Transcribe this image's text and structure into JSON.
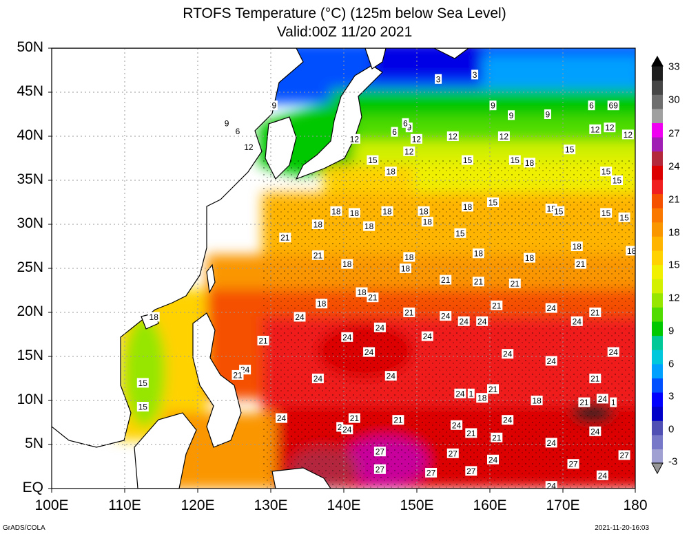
{
  "title": {
    "line1": "RTOFS Temperature (°C) (125m below Sea Level)",
    "line2": "Valid:00Z 11/20 2021"
  },
  "axes": {
    "lat_labels": [
      "50N",
      "45N",
      "40N",
      "35N",
      "30N",
      "25N",
      "20N",
      "15N",
      "10N",
      "5N",
      "EQ"
    ],
    "lon_labels": [
      "100E",
      "110E",
      "120E",
      "130E",
      "140E",
      "150E",
      "160E",
      "170E",
      "180"
    ]
  },
  "colorbar": {
    "labels": [
      "33",
      "30",
      "27",
      "24",
      "21",
      "18",
      "15",
      "12",
      "9",
      "6",
      "3",
      "0",
      "-3"
    ],
    "colors": [
      "#1e1e1e",
      "#464646",
      "#6e6e6e",
      "#a0a0a0",
      "#f000f0",
      "#a01eb4",
      "#b4283c",
      "#dc0000",
      "#f01e1e",
      "#f55000",
      "#fa7800",
      "#fa9600",
      "#ffb400",
      "#ffd200",
      "#f0f000",
      "#d2f000",
      "#96e600",
      "#50dc00",
      "#00c800",
      "#00c896",
      "#00c8dc",
      "#00a0ff",
      "#0050ff",
      "#0000ff",
      "#0000c8",
      "#5050b4",
      "#7878c8",
      "#a0a0d2"
    ],
    "top_arrow_color": "#000000",
    "bottom_arrow_color": "#969696"
  },
  "contour_labels": [
    {
      "t": "3",
      "lon": 153,
      "lat": 46.5
    },
    {
      "t": "3",
      "lon": 158,
      "lat": 47
    },
    {
      "t": "9",
      "lon": 130.5,
      "lat": 43.5
    },
    {
      "t": "9",
      "lon": 124,
      "lat": 41.5
    },
    {
      "t": "6",
      "lon": 125.5,
      "lat": 40.6
    },
    {
      "t": "12",
      "lon": 127,
      "lat": 38.8
    },
    {
      "t": "12",
      "lon": 141.5,
      "lat": 39.7
    },
    {
      "t": "6",
      "lon": 147,
      "lat": 40.5
    },
    {
      "t": "9",
      "lon": 149,
      "lat": 41
    },
    {
      "t": "6",
      "lon": 148.5,
      "lat": 41.5
    },
    {
      "t": "12",
      "lon": 150,
      "lat": 39.7
    },
    {
      "t": "12",
      "lon": 149,
      "lat": 38.3
    },
    {
      "t": "12",
      "lon": 155,
      "lat": 40
    },
    {
      "t": "12",
      "lon": 162,
      "lat": 40
    },
    {
      "t": "9",
      "lon": 160.5,
      "lat": 43.5
    },
    {
      "t": "9",
      "lon": 163,
      "lat": 42.4
    },
    {
      "t": "9",
      "lon": 168,
      "lat": 42.5
    },
    {
      "t": "6",
      "lon": 174,
      "lat": 43.5
    },
    {
      "t": "69",
      "lon": 177,
      "lat": 43.5
    },
    {
      "t": "12",
      "lon": 176.5,
      "lat": 41
    },
    {
      "t": "12",
      "lon": 174.5,
      "lat": 40.8
    },
    {
      "t": "12",
      "lon": 179,
      "lat": 40.2
    },
    {
      "t": "15",
      "lon": 144,
      "lat": 37.3
    },
    {
      "t": "18",
      "lon": 146.5,
      "lat": 36
    },
    {
      "t": "15",
      "lon": 157,
      "lat": 37.3
    },
    {
      "t": "15",
      "lon": 163.5,
      "lat": 37.3
    },
    {
      "t": "18",
      "lon": 165.5,
      "lat": 37
    },
    {
      "t": "15",
      "lon": 171,
      "lat": 38.5
    },
    {
      "t": "15",
      "lon": 176,
      "lat": 36
    },
    {
      "t": "15",
      "lon": 177.5,
      "lat": 35
    },
    {
      "t": "18",
      "lon": 139,
      "lat": 31.5
    },
    {
      "t": "18",
      "lon": 141.5,
      "lat": 31.3
    },
    {
      "t": "18",
      "lon": 146,
      "lat": 31.5
    },
    {
      "t": "18",
      "lon": 151,
      "lat": 31.5
    },
    {
      "t": "18",
      "lon": 151.5,
      "lat": 30.3
    },
    {
      "t": "18",
      "lon": 157,
      "lat": 32
    },
    {
      "t": "15",
      "lon": 160.5,
      "lat": 32.5
    },
    {
      "t": "15",
      "lon": 168.5,
      "lat": 31.8
    },
    {
      "t": "15",
      "lon": 169.5,
      "lat": 31.5
    },
    {
      "t": "15",
      "lon": 176,
      "lat": 31.3
    },
    {
      "t": "15",
      "lon": 178.5,
      "lat": 30.8
    },
    {
      "t": "18",
      "lon": 136.5,
      "lat": 30
    },
    {
      "t": "18",
      "lon": 143.5,
      "lat": 29.8
    },
    {
      "t": "15",
      "lon": 156,
      "lat": 29
    },
    {
      "t": "21",
      "lon": 132,
      "lat": 28.5
    },
    {
      "t": "18",
      "lon": 172,
      "lat": 27.5
    },
    {
      "t": "18",
      "lon": 179.5,
      "lat": 27
    },
    {
      "t": "21",
      "lon": 136.5,
      "lat": 26.5
    },
    {
      "t": "18",
      "lon": 140.5,
      "lat": 25.5
    },
    {
      "t": "18",
      "lon": 149,
      "lat": 26.3
    },
    {
      "t": "18",
      "lon": 158.5,
      "lat": 26.7
    },
    {
      "t": "18",
      "lon": 165.5,
      "lat": 26.2
    },
    {
      "t": "21",
      "lon": 172.5,
      "lat": 25.5
    },
    {
      "t": "18",
      "lon": 148.5,
      "lat": 25
    },
    {
      "t": "21",
      "lon": 154,
      "lat": 23.7
    },
    {
      "t": "21",
      "lon": 158.5,
      "lat": 23.5
    },
    {
      "t": "21",
      "lon": 163.5,
      "lat": 23.3
    },
    {
      "t": "18",
      "lon": 142.5,
      "lat": 22.3
    },
    {
      "t": "21",
      "lon": 144,
      "lat": 21.7
    },
    {
      "t": "18",
      "lon": 137,
      "lat": 21
    },
    {
      "t": "21",
      "lon": 161,
      "lat": 20.8
    },
    {
      "t": "24",
      "lon": 168.5,
      "lat": 20.5
    },
    {
      "t": "21",
      "lon": 174.5,
      "lat": 20
    },
    {
      "t": "21",
      "lon": 149,
      "lat": 20
    },
    {
      "t": "24",
      "lon": 154,
      "lat": 19.6
    },
    {
      "t": "24",
      "lon": 156.5,
      "lat": 19
    },
    {
      "t": "24",
      "lon": 159,
      "lat": 19
    },
    {
      "t": "24",
      "lon": 172,
      "lat": 19
    },
    {
      "t": "24",
      "lon": 134,
      "lat": 19.5
    },
    {
      "t": "18",
      "lon": 114,
      "lat": 19.5
    },
    {
      "t": "24",
      "lon": 145,
      "lat": 18.3
    },
    {
      "t": "24",
      "lon": 151.5,
      "lat": 17.3
    },
    {
      "t": "24",
      "lon": 140.5,
      "lat": 17.2
    },
    {
      "t": "21",
      "lon": 129,
      "lat": 16.8
    },
    {
      "t": "24",
      "lon": 143.5,
      "lat": 15.5
    },
    {
      "t": "24",
      "lon": 162.5,
      "lat": 15.3
    },
    {
      "t": "24",
      "lon": 168.5,
      "lat": 14.5
    },
    {
      "t": "24",
      "lon": 177,
      "lat": 15.5
    },
    {
      "t": "24",
      "lon": 126.5,
      "lat": 13.5
    },
    {
      "t": "21",
      "lon": 125.5,
      "lat": 12.9
    },
    {
      "t": "24",
      "lon": 136.5,
      "lat": 12.5
    },
    {
      "t": "24",
      "lon": 146.5,
      "lat": 12.8
    },
    {
      "t": "21",
      "lon": 174.5,
      "lat": 12.5
    },
    {
      "t": "15",
      "lon": 112.5,
      "lat": 12
    },
    {
      "t": "21",
      "lon": 160.5,
      "lat": 11.3
    },
    {
      "t": "24",
      "lon": 156,
      "lat": 10.8
    },
    {
      "t": "1",
      "lon": 157.5,
      "lat": 10.8
    },
    {
      "t": "18",
      "lon": 159,
      "lat": 10.3
    },
    {
      "t": "18",
      "lon": 166.5,
      "lat": 10
    },
    {
      "t": "21",
      "lon": 173,
      "lat": 9.8
    },
    {
      "t": "24",
      "lon": 175.5,
      "lat": 10.2
    },
    {
      "t": "1",
      "lon": 177,
      "lat": 9.8
    },
    {
      "t": "15",
      "lon": 112.5,
      "lat": 9.3
    },
    {
      "t": "24",
      "lon": 131.5,
      "lat": 8
    },
    {
      "t": "21",
      "lon": 141.5,
      "lat": 8
    },
    {
      "t": "21",
      "lon": 147.5,
      "lat": 7.8
    },
    {
      "t": "24",
      "lon": 162.5,
      "lat": 7.8
    },
    {
      "t": "2",
      "lon": 139.5,
      "lat": 7
    },
    {
      "t": "24",
      "lon": 140.5,
      "lat": 6.7
    },
    {
      "t": "24",
      "lon": 155.5,
      "lat": 7.2
    },
    {
      "t": "21",
      "lon": 157.5,
      "lat": 6.3
    },
    {
      "t": "24",
      "lon": 174.5,
      "lat": 6.5
    },
    {
      "t": "21",
      "lon": 161,
      "lat": 5.8
    },
    {
      "t": "24",
      "lon": 168.5,
      "lat": 5.2
    },
    {
      "t": "27",
      "lon": 145,
      "lat": 4.2
    },
    {
      "t": "27",
      "lon": 155,
      "lat": 4
    },
    {
      "t": "24",
      "lon": 160.5,
      "lat": 3.3
    },
    {
      "t": "27",
      "lon": 178.5,
      "lat": 3.8
    },
    {
      "t": "27",
      "lon": 171.5,
      "lat": 2.8
    },
    {
      "t": "27",
      "lon": 145,
      "lat": 2.2
    },
    {
      "t": "27",
      "lon": 152,
      "lat": 1.8
    },
    {
      "t": "27",
      "lon": 157.5,
      "lat": 2
    },
    {
      "t": "24",
      "lon": 175.5,
      "lat": 1.5
    },
    {
      "t": "24",
      "lon": 168.5,
      "lat": 0.3
    }
  ],
  "footer": {
    "left": "GrADS/COLA",
    "right": "2021-11-20-16:03"
  }
}
